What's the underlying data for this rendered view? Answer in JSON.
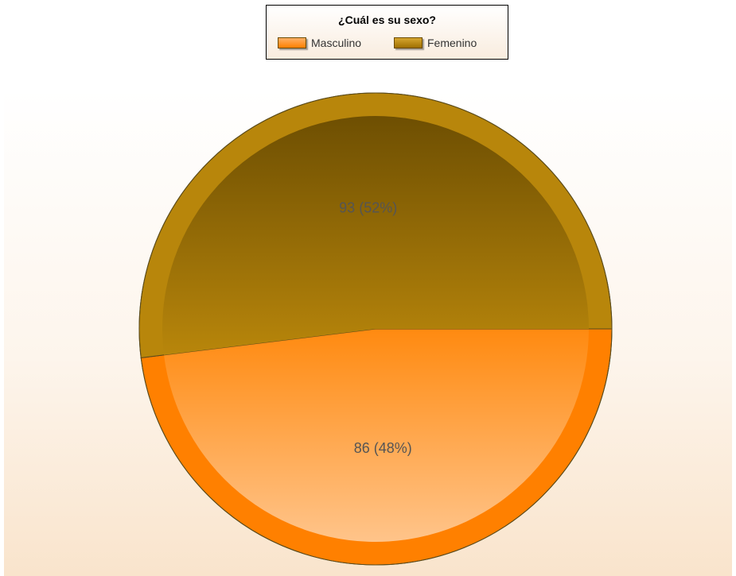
{
  "legend": {
    "title": "¿Cuál es su sexo?",
    "items": [
      {
        "label": "Masculino",
        "color": "#ff8000"
      },
      {
        "label": "Femenino",
        "color": "#b8860b"
      }
    ]
  },
  "chart_data": {
    "type": "pie",
    "title": "¿Cuál es su sexo?",
    "categories": [
      "Masculino",
      "Femenino"
    ],
    "values": [
      86,
      93
    ],
    "percentages": [
      48,
      52
    ],
    "data_labels": [
      "86 (48%)",
      "93 (52%)"
    ],
    "colors": [
      "#ff8000",
      "#b8860b"
    ],
    "legend_position": "top-center"
  }
}
